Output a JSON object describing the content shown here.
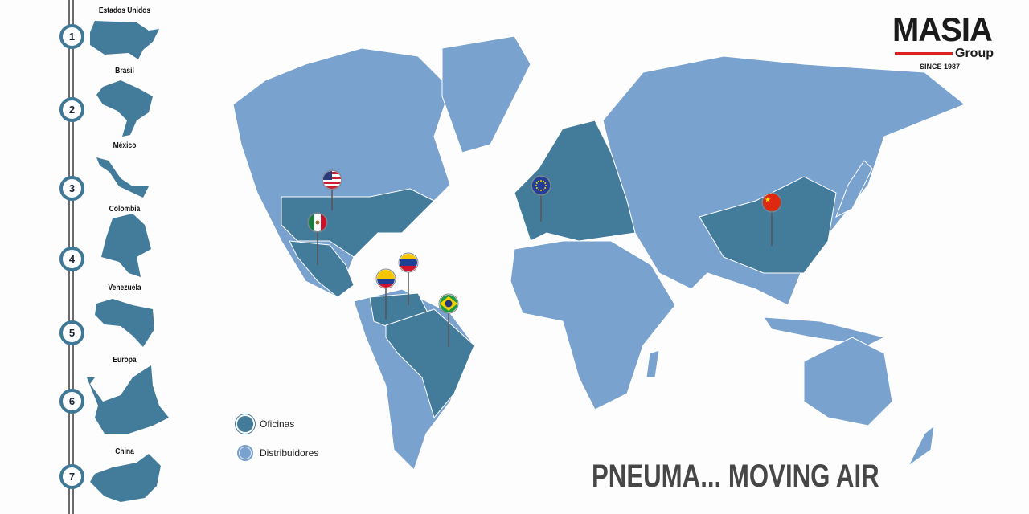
{
  "brand": {
    "name": "MASIA",
    "sub": "Group",
    "since": "SINCE 1987",
    "accent": "#e02020"
  },
  "colors": {
    "office": "#437b9b",
    "distributor": "#7aa2ce"
  },
  "sidebar": {
    "items": [
      {
        "num": "1",
        "label": "Estados Unidos"
      },
      {
        "num": "2",
        "label": "Brasil"
      },
      {
        "num": "3",
        "label": "México"
      },
      {
        "num": "4",
        "label": "Colombia"
      },
      {
        "num": "5",
        "label": "Venezuela"
      },
      {
        "num": "6",
        "label": "Europa"
      },
      {
        "num": "7",
        "label": "China"
      }
    ]
  },
  "legend": {
    "office": "Oficinas",
    "distributor": "Distribuidores"
  },
  "pins": [
    "united-states-flag",
    "mexico-flag",
    "venezuela-flag",
    "colombia-flag",
    "brazil-flag",
    "european-union-flag",
    "china-flag"
  ],
  "tagline": "PNEUMA... MOVING AIR"
}
